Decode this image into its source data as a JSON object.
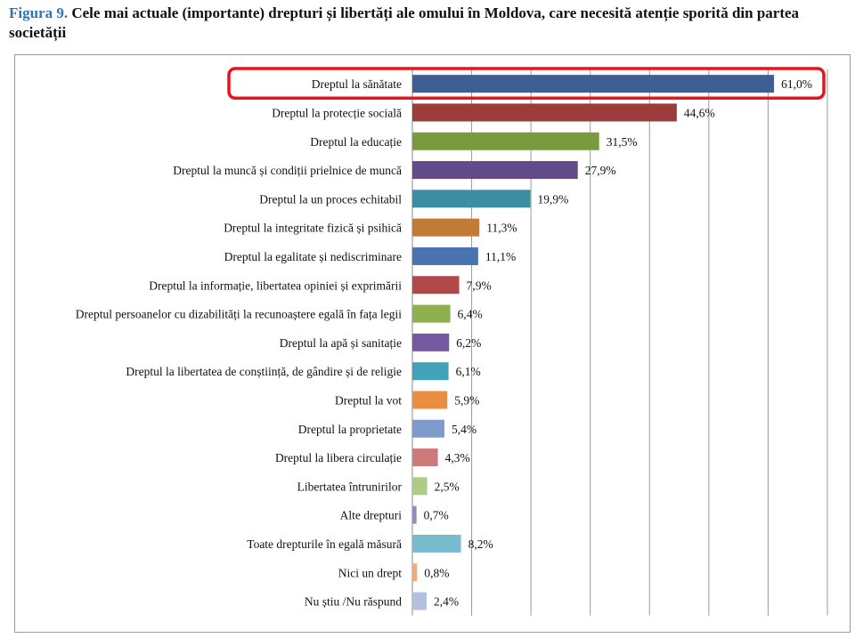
{
  "figure": {
    "label": "Figura 9.",
    "title": "Cele mai actuale (importante) drepturi și libertăți ale omului în Moldova, care necesită atenție sporită din partea societății"
  },
  "chart_data": {
    "type": "bar",
    "orientation": "horizontal",
    "categories": [
      "Dreptul la sănătate",
      "Dreptul la protecție socială",
      "Dreptul la educație",
      "Dreptul la muncă și condiții prielnice de muncă",
      "Dreptul la un proces echitabil",
      "Dreptul la integritate fizică și psihică",
      "Dreptul la egalitate și nediscriminare",
      "Dreptul la  informație, libertatea opiniei și exprimării",
      "Dreptul persoanelor cu dizabilități la recunoaștere egală în fața legii",
      "Dreptul la apă și sanitație",
      "Dreptul la libertatea de conștiință, de gândire și de religie",
      "Dreptul la vot",
      "Dreptul la proprietate",
      "Dreptul la libera circulație",
      "Libertatea întrunirilor",
      "Alte drepturi",
      "Toate drepturile în egală măsură",
      "Nici un drept",
      "Nu știu /Nu răspund"
    ],
    "values": [
      61.0,
      44.6,
      31.5,
      27.9,
      19.9,
      11.3,
      11.1,
      7.9,
      6.4,
      6.2,
      6.1,
      5.9,
      5.4,
      4.3,
      2.5,
      0.7,
      8.2,
      0.8,
      2.4
    ],
    "value_labels": [
      "61,0%",
      "44,6%",
      "31,5%",
      "27,9%",
      "19,9%",
      "11,3%",
      "11,1%",
      "7,9%",
      "6,4%",
      "6,2%",
      "6,1%",
      "5,9%",
      "5,4%",
      "4,3%",
      "2,5%",
      "0,7%",
      "8,2%",
      "0,8%",
      "2,4%"
    ],
    "colors": [
      "#3e5f93",
      "#9b3b3b",
      "#799a3e",
      "#624b86",
      "#3b8da1",
      "#c27a34",
      "#4a74b0",
      "#b34848",
      "#8fb04e",
      "#7558a0",
      "#42a2b9",
      "#ea8f42",
      "#7f9bcb",
      "#cf7a7a",
      "#aecc84",
      "#9c88bf",
      "#78bccf",
      "#f5aa78",
      "#b4c1de"
    ],
    "xlim": [
      0,
      70
    ],
    "grid": true,
    "highlighted_category": "Dreptul la sănătate",
    "highlight_color": "#e8141b"
  }
}
